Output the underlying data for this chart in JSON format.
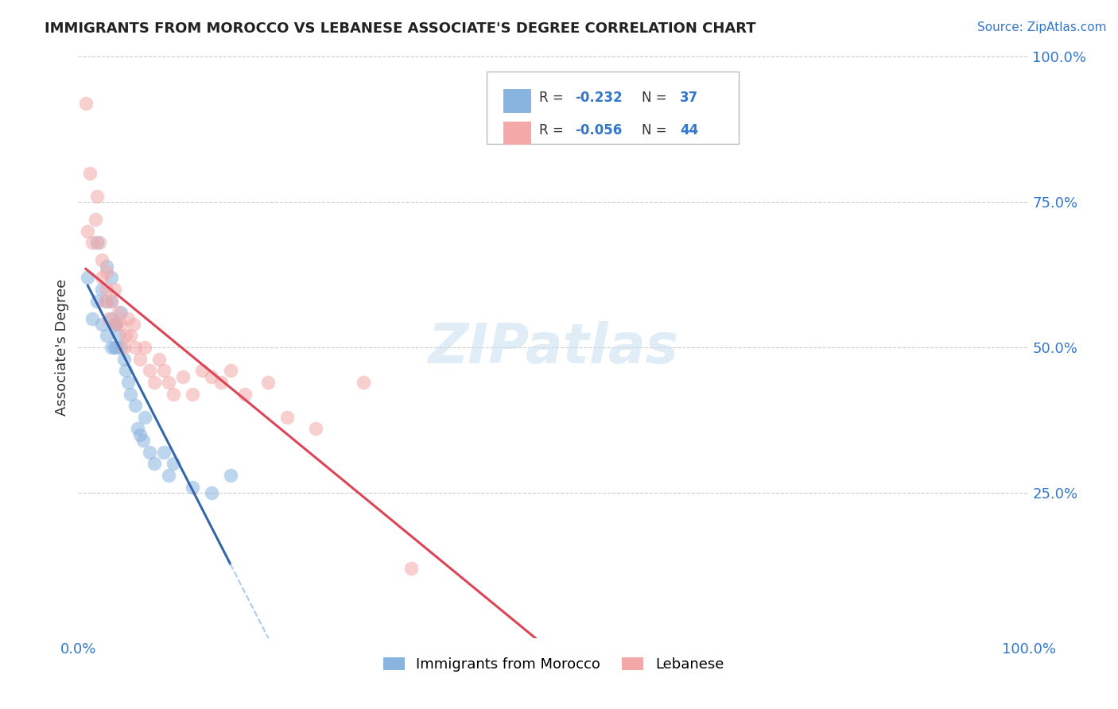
{
  "title": "IMMIGRANTS FROM MOROCCO VS LEBANESE ASSOCIATE'S DEGREE CORRELATION CHART",
  "source_text": "Source: ZipAtlas.com",
  "ylabel": "Associate's Degree",
  "xlim": [
    0.0,
    1.0
  ],
  "ylim": [
    0.0,
    1.0
  ],
  "legend_r1": "-0.232",
  "legend_n1": "37",
  "legend_r2": "-0.056",
  "legend_n2": "44",
  "legend_label1": "Immigrants from Morocco",
  "legend_label2": "Lebanese",
  "color_morocco": "#8ab4e0",
  "color_lebanese": "#f4a8a8",
  "trendline_morocco_color": "#3366aa",
  "trendline_lebanese_color": "#dd4455",
  "trendline_dashed_color": "#aaccee",
  "watermark": "ZIPatlas",
  "background_color": "#ffffff",
  "grid_color": "#cccccc",
  "scatter_alpha": 0.55,
  "scatter_size": 160,
  "morocco_x": [
    0.01,
    0.015,
    0.02,
    0.02,
    0.025,
    0.025,
    0.03,
    0.03,
    0.03,
    0.035,
    0.035,
    0.035,
    0.035,
    0.038,
    0.038,
    0.04,
    0.04,
    0.042,
    0.045,
    0.045,
    0.048,
    0.05,
    0.052,
    0.055,
    0.06,
    0.062,
    0.065,
    0.068,
    0.07,
    0.075,
    0.08,
    0.09,
    0.095,
    0.1,
    0.12,
    0.14,
    0.16
  ],
  "morocco_y": [
    0.62,
    0.55,
    0.68,
    0.58,
    0.54,
    0.6,
    0.52,
    0.58,
    0.64,
    0.5,
    0.55,
    0.58,
    0.62,
    0.5,
    0.54,
    0.5,
    0.54,
    0.52,
    0.5,
    0.56,
    0.48,
    0.46,
    0.44,
    0.42,
    0.4,
    0.36,
    0.35,
    0.34,
    0.38,
    0.32,
    0.3,
    0.32,
    0.28,
    0.3,
    0.26,
    0.25,
    0.28
  ],
  "lebanese_x": [
    0.008,
    0.01,
    0.012,
    0.015,
    0.018,
    0.02,
    0.022,
    0.025,
    0.025,
    0.028,
    0.03,
    0.03,
    0.032,
    0.035,
    0.038,
    0.04,
    0.042,
    0.045,
    0.048,
    0.05,
    0.052,
    0.055,
    0.058,
    0.06,
    0.065,
    0.07,
    0.075,
    0.08,
    0.085,
    0.09,
    0.095,
    0.1,
    0.11,
    0.12,
    0.13,
    0.14,
    0.15,
    0.16,
    0.175,
    0.2,
    0.22,
    0.25,
    0.3,
    0.35
  ],
  "lebanese_y": [
    0.92,
    0.7,
    0.8,
    0.68,
    0.72,
    0.76,
    0.68,
    0.62,
    0.65,
    0.58,
    0.6,
    0.63,
    0.55,
    0.58,
    0.6,
    0.54,
    0.56,
    0.54,
    0.5,
    0.52,
    0.55,
    0.52,
    0.54,
    0.5,
    0.48,
    0.5,
    0.46,
    0.44,
    0.48,
    0.46,
    0.44,
    0.42,
    0.45,
    0.42,
    0.46,
    0.45,
    0.44,
    0.46,
    0.42,
    0.44,
    0.38,
    0.36,
    0.44,
    0.12
  ]
}
